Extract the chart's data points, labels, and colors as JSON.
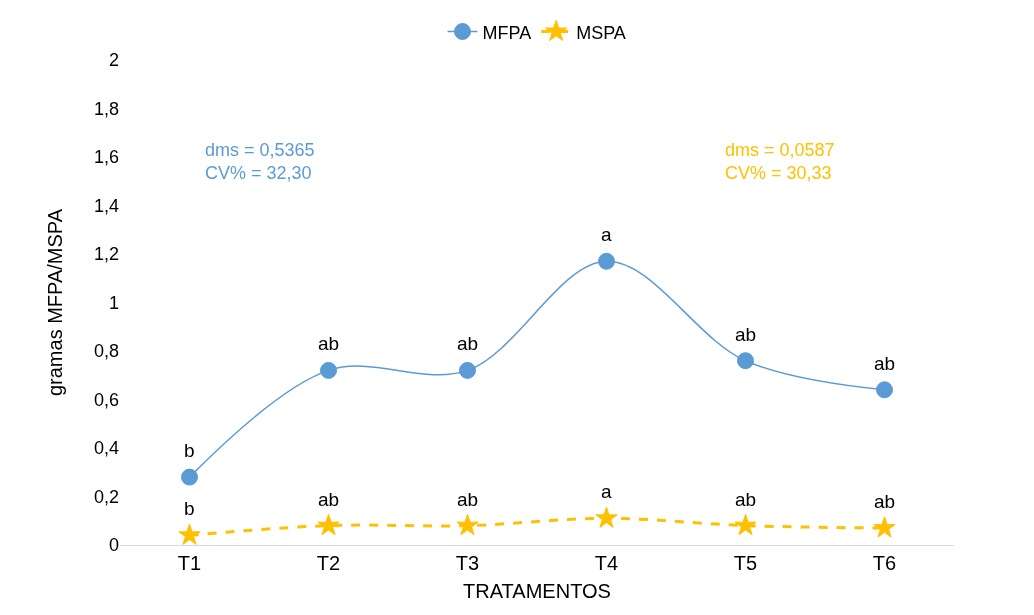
{
  "chart_data": {
    "type": "line",
    "xlabel": "TRATAMENTOS",
    "ylabel": "gramas MFPA/MSPA",
    "categories": [
      "T1",
      "T2",
      "T3",
      "T4",
      "T5",
      "T6"
    ],
    "series": [
      {
        "name": "MFPA",
        "color": "#5b9bd5",
        "values": [
          0.28,
          0.72,
          0.72,
          1.17,
          0.76,
          0.64
        ],
        "marker": "circle",
        "line_style": "solid"
      },
      {
        "name": "MSPA",
        "color": "#ffc000",
        "values": [
          0.04,
          0.08,
          0.08,
          0.11,
          0.08,
          0.07
        ],
        "marker": "star",
        "line_style": "dashed"
      }
    ],
    "ylim": [
      0,
      2
    ],
    "yticks": [
      {
        "value": 0,
        "label": "0"
      },
      {
        "value": 0.2,
        "label": "0,2"
      },
      {
        "value": 0.4,
        "label": "0,4"
      },
      {
        "value": 0.6,
        "label": "0,6"
      },
      {
        "value": 0.8,
        "label": "0,8"
      },
      {
        "value": 1,
        "label": "1"
      },
      {
        "value": 1.2,
        "label": "1,2"
      },
      {
        "value": 1.4,
        "label": "1,4"
      },
      {
        "value": 1.6,
        "label": "1,6"
      },
      {
        "value": 1.8,
        "label": "1,8"
      },
      {
        "value": 2,
        "label": "2"
      }
    ],
    "grid": false,
    "legend": "top",
    "annotations": [
      "dms = 0,5365\nCV% = 32,30",
      "dms = 0,0587\nCV% = 30,33",
      {
        "text": "b",
        "x": "T1",
        "y": 0.28
      },
      {
        "text": "ab",
        "x": "T2",
        "y": 0.72
      },
      {
        "text": "ab",
        "x": "T3",
        "y": 0.72
      },
      {
        "text": "a",
        "x": "T4",
        "y": 1.17
      },
      {
        "text": "ab",
        "x": "T5",
        "y": 0.76
      },
      {
        "text": "ab",
        "x": "T6",
        "y": 0.64
      },
      {
        "text": "b",
        "x": "T1",
        "y": 0.04
      },
      {
        "text": "ab",
        "x": "T2",
        "y": 0.08
      },
      {
        "text": "ab",
        "x": "T3",
        "y": 0.08
      },
      {
        "text": "a",
        "x": "T4",
        "y": 0.11
      },
      {
        "text": "ab",
        "x": "T5",
        "y": 0.08
      },
      {
        "text": "ab",
        "x": "T6",
        "y": 0.07
      }
    ]
  }
}
